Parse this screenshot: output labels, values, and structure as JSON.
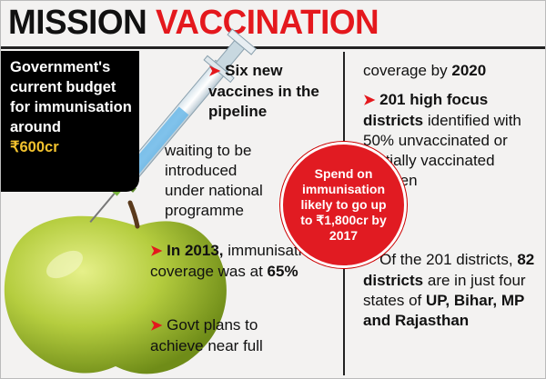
{
  "title": {
    "part1": "MISSION",
    "part2": "VACCINATION"
  },
  "budget": {
    "text": "Government's current budget for immunisation around",
    "amount": "₹600cr"
  },
  "col1": {
    "point1_bold": "Six new vaccines in the pipeline",
    "point1_rest": "waiting to be introduced under national programme",
    "point2_bold_year": "In 2013,",
    "point2_rest": "immunisation coverage was at",
    "point2_pct": "65%",
    "point3_rest": "Govt plans to achieve near full"
  },
  "col2": {
    "cont": "coverage by",
    "cont_year": "2020",
    "point1_bold": "201 high focus districts",
    "point1_rest": "identified with 50% unvaccinated or partially vaccinated children",
    "point2_rest1": "Of the 201 districts,",
    "point2_bold": "82 districts",
    "point2_rest2": "are in just four states of",
    "point2_states": "UP, Bihar, MP and Rajasthan"
  },
  "circle_text": "Spend on immunisation likely to go up to ₹1,800cr by 2017",
  "arrow_glyph": "➤",
  "colors": {
    "red": "#e4181d",
    "gold": "#f2c22e",
    "apple": "#a8c63a"
  },
  "icons": [
    "syringe-icon",
    "apple-icon"
  ]
}
